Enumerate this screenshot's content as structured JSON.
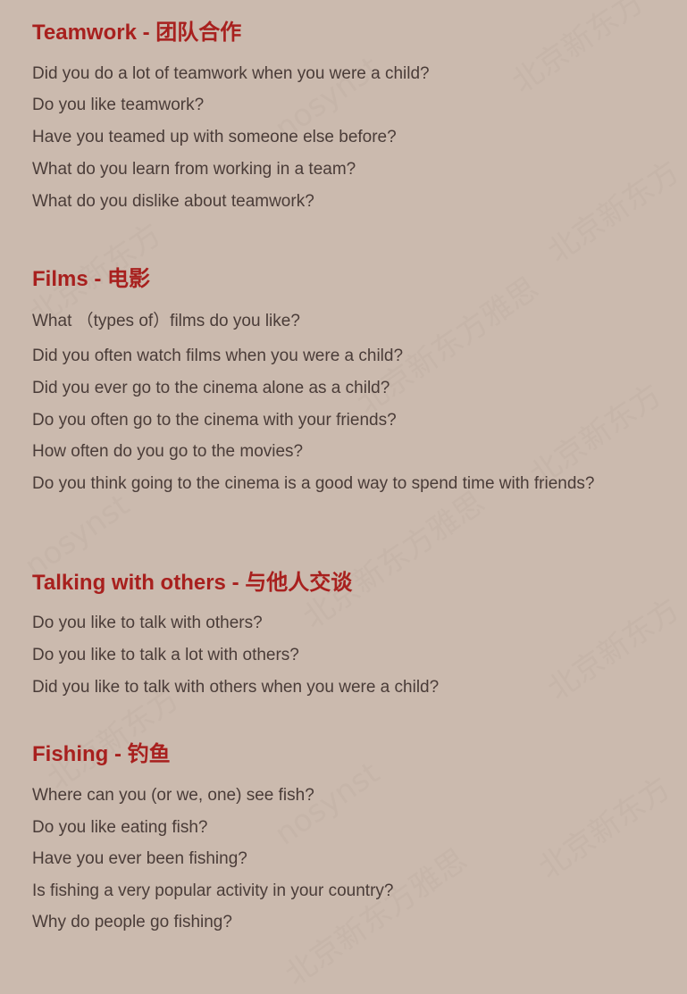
{
  "watermark": {
    "cn": "北京新东方雅思",
    "en": "nosynst"
  },
  "sections": [
    {
      "heading": "Teamwork - 团队合作",
      "questions": [
        "Did you do a lot of teamwork when you were a child?",
        "Do you like teamwork?",
        "Have you teamed up with someone else before?",
        "What do you learn from working in a team?",
        "What do you dislike about teamwork?"
      ]
    },
    {
      "heading": "Films - 电影",
      "questions": [
        "What （types of）films do you like?",
        "Did you often watch films when you were a child?",
        "Did you ever go to the cinema alone as a child?",
        "Do you often go to the cinema with your friends?",
        "How often do you go to the movies?",
        "Do you think going to the cinema is a good way to spend time with friends?"
      ]
    },
    {
      "heading": "Talking with others - 与他人交谈",
      "questions": [
        "Do you like to talk with others?",
        "Do you like to talk a lot with others?",
        "Did you like to talk with others when you were a child?"
      ]
    },
    {
      "heading": "Fishing - 钓鱼",
      "questions": [
        "Where can you (or we, one) see fish?",
        "Do you like eating fish?",
        "Have you ever been fishing?",
        "Is fishing a very popular activity in your country?",
        "Why do people go fishing?"
      ]
    }
  ]
}
